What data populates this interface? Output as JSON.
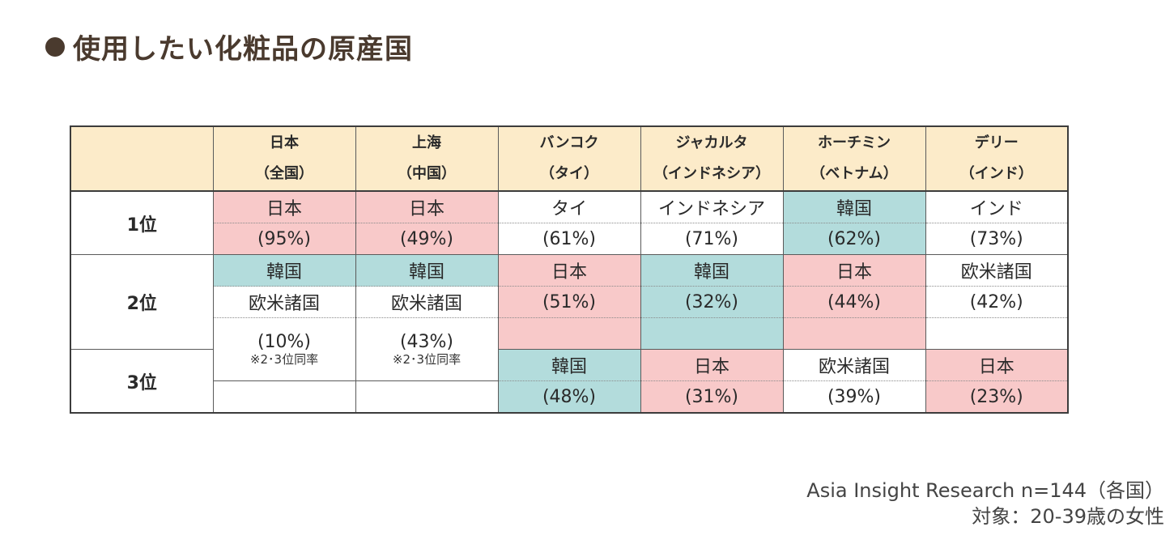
{
  "title": "使用したい化粧品の原産国",
  "colors": {
    "title": "#4a3a2e",
    "header_bg": "#fcebc9",
    "japan": "#f8c9c9",
    "korea": "#b3dcdc",
    "border": "#3c3c3c"
  },
  "source": {
    "line1": "Asia Insight Research  n=144（各国）",
    "line2": "対象：20-39歳の女性"
  },
  "chart_data": {
    "type": "table",
    "columns": [
      {
        "city": "日本",
        "country": "（全国）"
      },
      {
        "city": "上海",
        "country": "（中国）"
      },
      {
        "city": "バンコク",
        "country": "（タイ）"
      },
      {
        "city": "ジャカルタ",
        "country": "（インドネシア）"
      },
      {
        "city": "ホーチミン",
        "country": "（ベトナム）"
      },
      {
        "city": "デリー",
        "country": "（インド）"
      }
    ],
    "rows": [
      "1位",
      "2位",
      "3位"
    ],
    "cells": {
      "r1": [
        {
          "country": "日本",
          "pct": "(95%)"
        },
        {
          "country": "日本",
          "pct": "(49%)"
        },
        {
          "country": "タイ",
          "pct": "(61%)"
        },
        {
          "country": "インドネシア",
          "pct": "(71%)"
        },
        {
          "country": "韓国",
          "pct": "(62%)"
        },
        {
          "country": "インド",
          "pct": "(73%)"
        }
      ],
      "r2": [
        {
          "country": "韓国",
          "country2": "欧米諸国",
          "pct": "(10%)",
          "note": "※2･3位同率"
        },
        {
          "country": "韓国",
          "country2": "欧米諸国",
          "pct": "(43%)",
          "note": "※2･3位同率"
        },
        {
          "country": "日本",
          "pct": "(51%)"
        },
        {
          "country": "韓国",
          "pct": "(32%)"
        },
        {
          "country": "日本",
          "pct": "(44%)"
        },
        {
          "country": "欧米諸国",
          "pct": "(42%)"
        }
      ],
      "r3": [
        null,
        null,
        {
          "country": "韓国",
          "pct": "(48%)"
        },
        {
          "country": "日本",
          "pct": "(31%)"
        },
        {
          "country": "欧米諸国",
          "pct": "(39%)"
        },
        {
          "country": "日本",
          "pct": "(23%)"
        }
      ]
    }
  }
}
